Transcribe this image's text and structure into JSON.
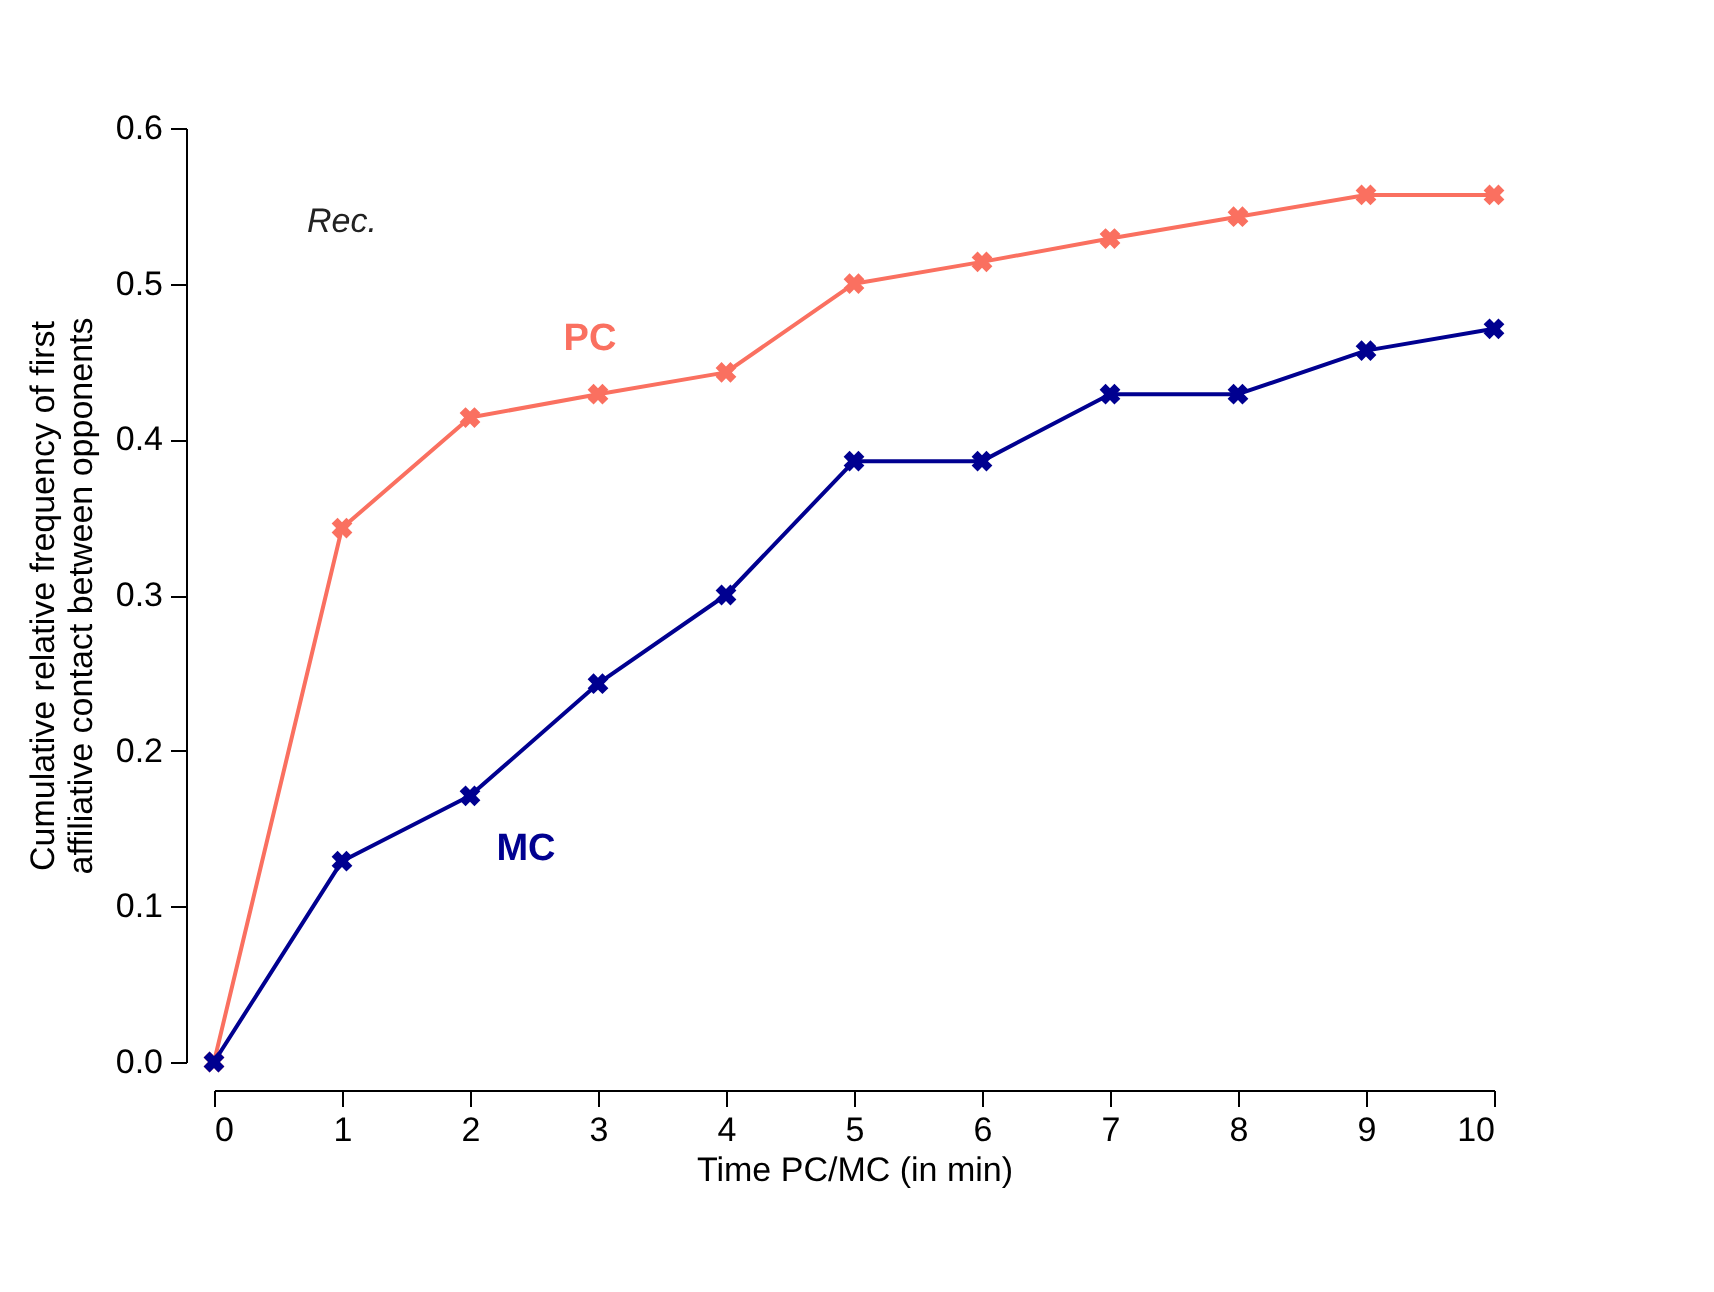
{
  "chart_data": {
    "type": "line",
    "xlabel": "Time PC/MC (in min)",
    "ylabel": "Cumulative relative frequency of first affiliative contact between opponents",
    "x": [
      0,
      1,
      2,
      3,
      4,
      5,
      6,
      7,
      8,
      9,
      10
    ],
    "series": [
      {
        "name": "PC",
        "color": "#fa7060",
        "values": [
          0,
          0.343,
          0.414,
          0.429,
          0.443,
          0.5,
          0.514,
          0.529,
          0.543,
          0.557,
          0.557
        ]
      },
      {
        "name": "MC",
        "color": "#000090",
        "values": [
          0,
          0.129,
          0.171,
          0.243,
          0.3,
          0.386,
          0.386,
          0.429,
          0.429,
          0.457,
          0.471
        ]
      }
    ],
    "xlim": [
      0,
      10
    ],
    "xticks": [
      0,
      1,
      2,
      3,
      4,
      5,
      6,
      7,
      8,
      9,
      10
    ],
    "ylim": [
      0,
      0.6
    ],
    "yticks": [
      {
        "value": 0,
        "label": "0.0"
      },
      0.1,
      0.2,
      0.3,
      0.4,
      0.5,
      0.6
    ],
    "annotations": [
      "Rec."
    ],
    "marker": "cross",
    "line_style": "solid",
    "grid": false,
    "legend": false
  }
}
